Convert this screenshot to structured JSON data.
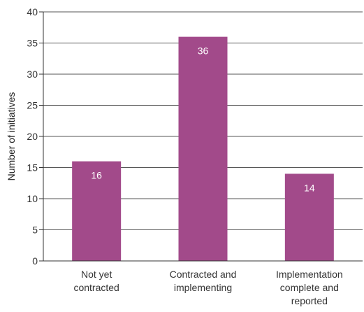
{
  "chart_data": {
    "type": "bar",
    "categories": [
      [
        "Not yet",
        "contracted"
      ],
      [
        "Contracted and",
        "implementing"
      ],
      [
        "Implementation",
        "complete and",
        "reported"
      ]
    ],
    "values": [
      16,
      36,
      14
    ],
    "data_labels": [
      "16",
      "36",
      "14"
    ],
    "ylabel": "Number of initiatives",
    "ylim": [
      0,
      40
    ],
    "yticks": [
      "0",
      "5",
      "10",
      "15",
      "20",
      "25",
      "30",
      "35",
      "40"
    ],
    "grid": true,
    "bar_color": "#a24a8a"
  }
}
